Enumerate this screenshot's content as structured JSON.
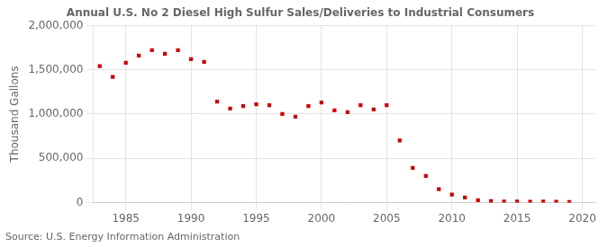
{
  "chart_data": {
    "type": "scatter",
    "title": "Annual U.S. No 2 Diesel High Sulfur Sales/Deliveries to Industrial Consumers",
    "ylabel": "Thousand Gallons",
    "annotations": [
      "Source: U.S. Energy Information Administration"
    ],
    "x": [
      1983,
      1984,
      1985,
      1986,
      1987,
      1988,
      1989,
      1990,
      1991,
      1992,
      1993,
      1994,
      1995,
      1996,
      1997,
      1998,
      1999,
      2000,
      2001,
      2002,
      2003,
      2004,
      2005,
      2006,
      2007,
      2008,
      2009,
      2010,
      2011,
      2012,
      2013,
      2014,
      2015,
      2016,
      2017,
      2018,
      2019
    ],
    "values": [
      1540000,
      1420000,
      1580000,
      1660000,
      1720000,
      1680000,
      1720000,
      1620000,
      1590000,
      1140000,
      1060000,
      1090000,
      1110000,
      1100000,
      1000000,
      970000,
      1090000,
      1130000,
      1040000,
      1020000,
      1100000,
      1050000,
      1100000,
      700000,
      390000,
      300000,
      150000,
      90000,
      55000,
      25000,
      15000,
      10000,
      10000,
      8000,
      10000,
      8000,
      5000
    ],
    "color": "#cc0000",
    "marker": "square",
    "xlim": [
      1982.5,
      2021
    ],
    "ylim": [
      0,
      2000000
    ],
    "xticks": [
      1985,
      1990,
      1995,
      2000,
      2005,
      2010,
      2015,
      2020
    ],
    "yticks": [
      0,
      {
        "value": 500000,
        "label": "500,000"
      },
      {
        "value": 1000000,
        "label": "1,000,000"
      },
      {
        "value": 1500000,
        "label": "1,500,000"
      },
      {
        "value": 2000000,
        "label": "2,000,000"
      }
    ],
    "grid": true
  }
}
